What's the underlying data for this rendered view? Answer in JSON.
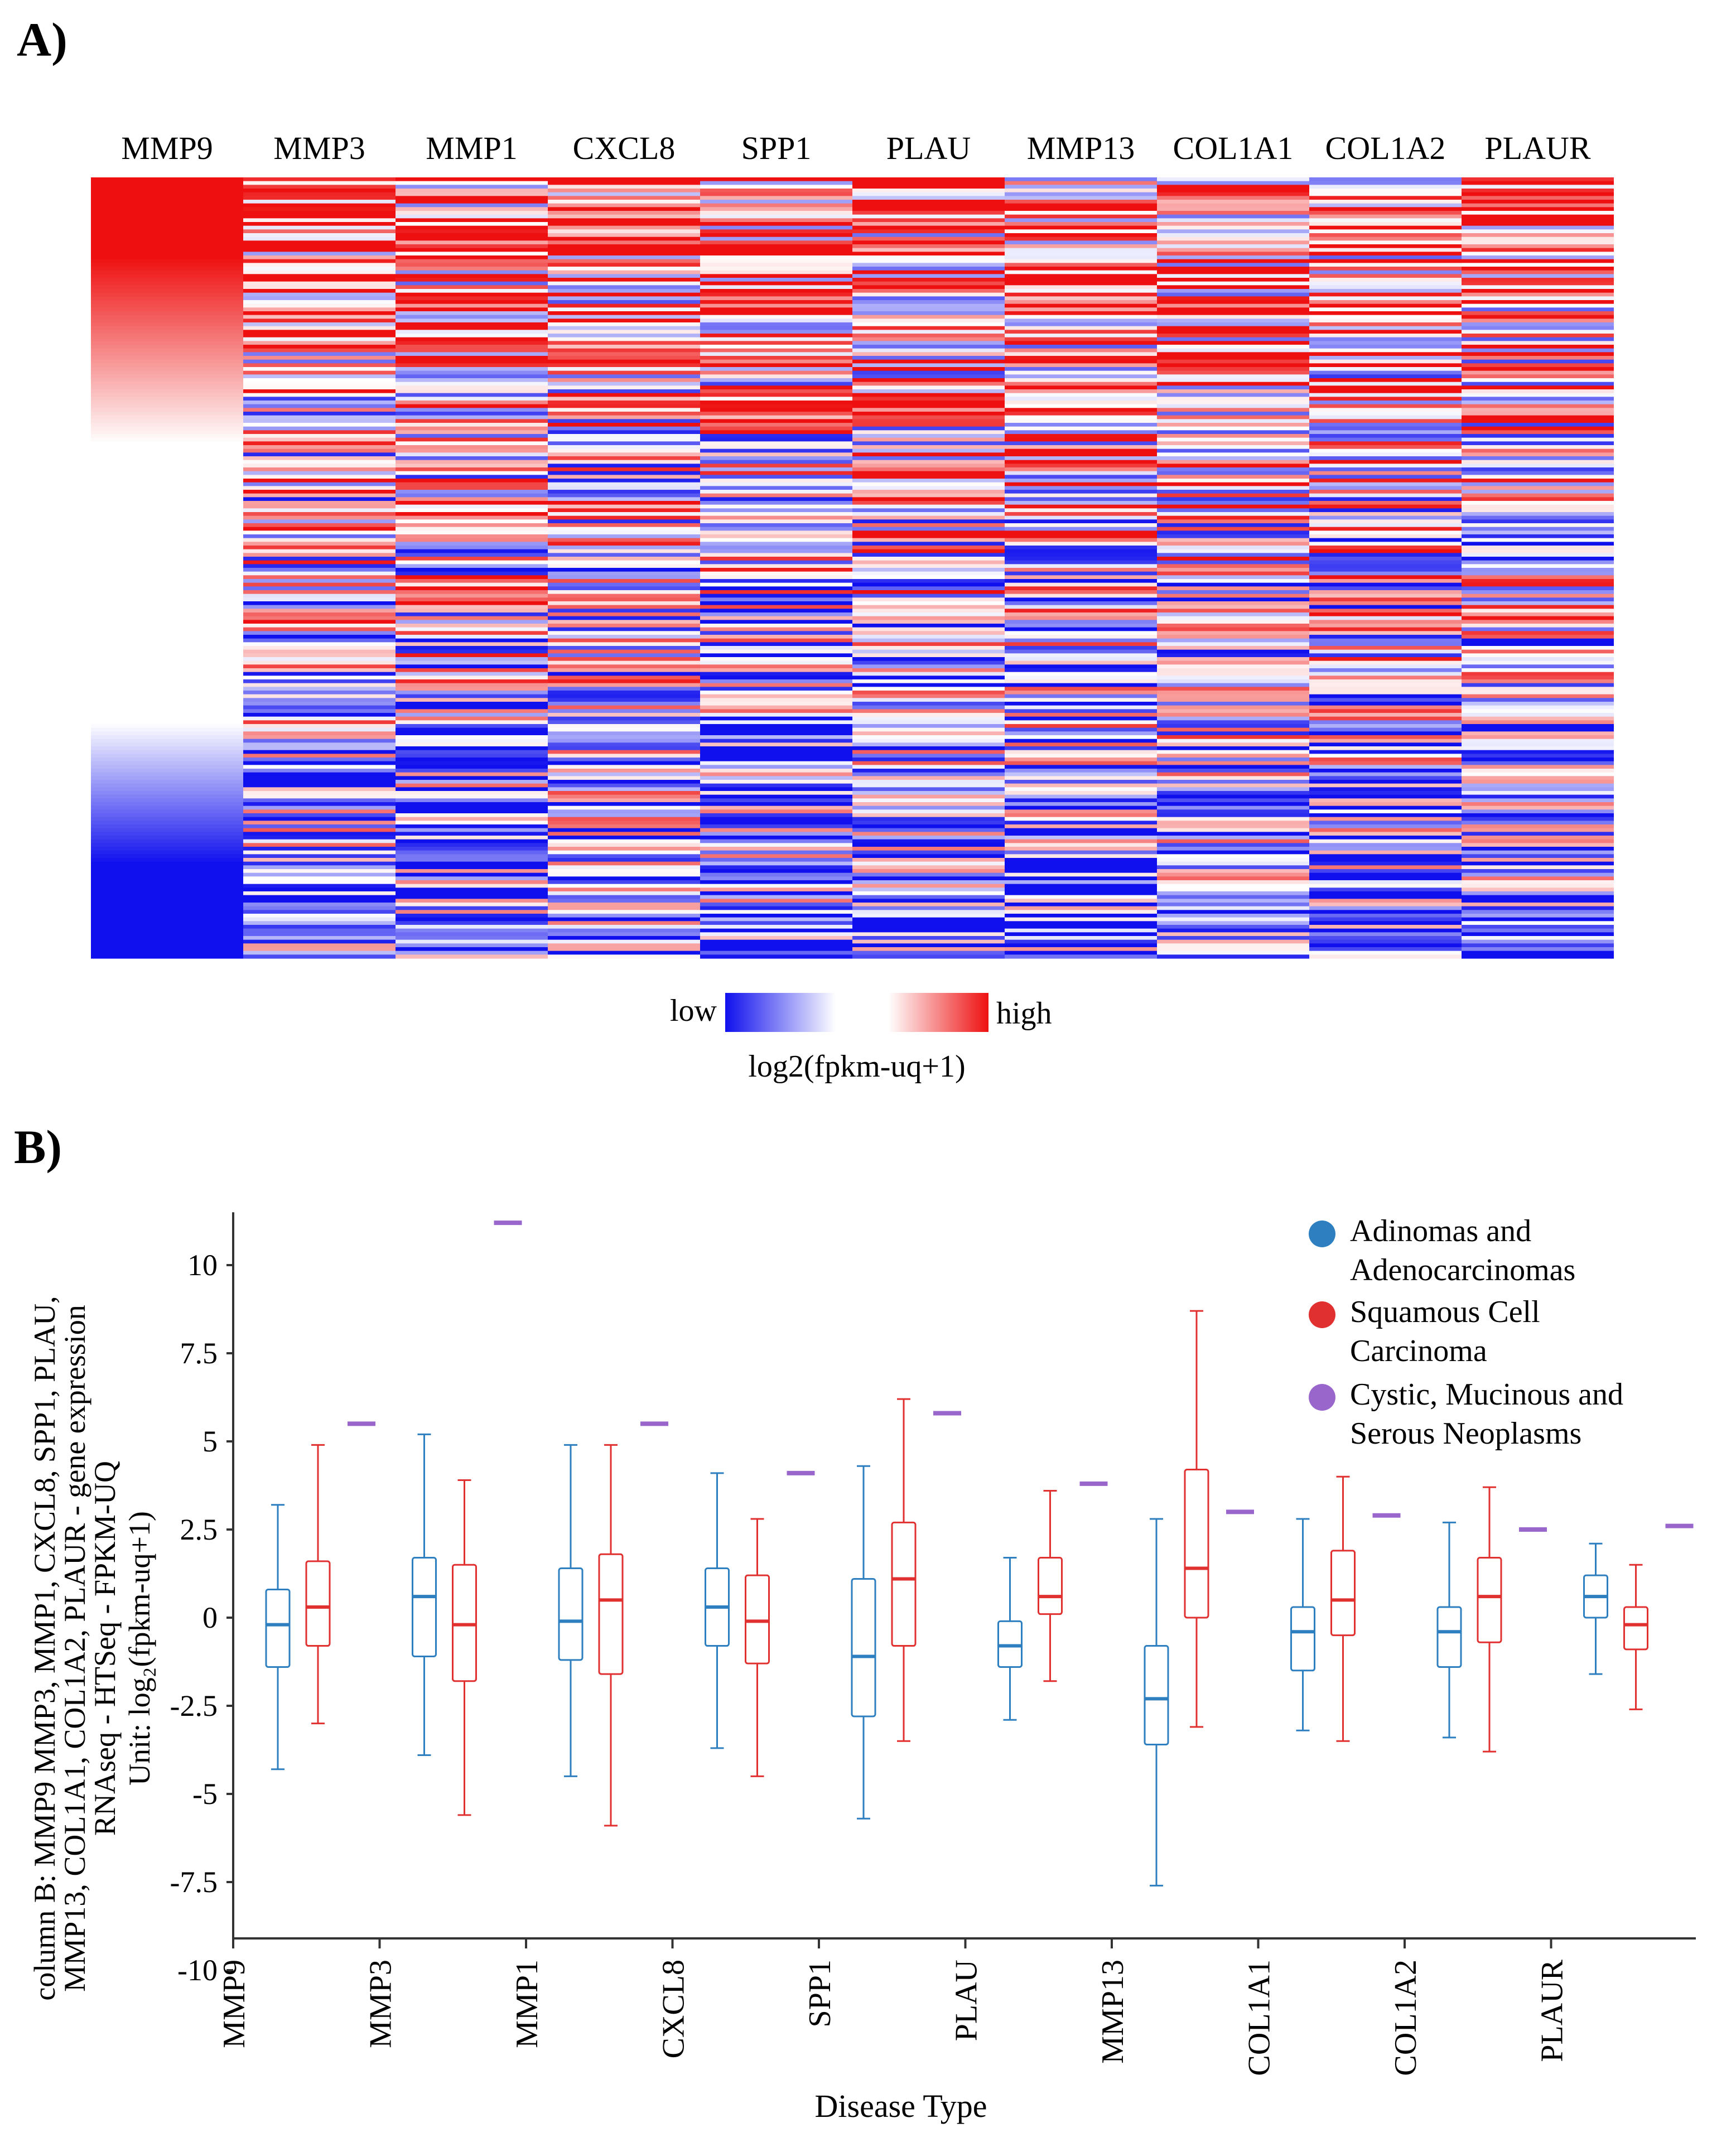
{
  "panels": {
    "a_label": "A)",
    "b_label": "B)"
  },
  "chart_data": [
    {
      "type": "heatmap",
      "columns": [
        "MMP9",
        "MMP3",
        "MMP1",
        "CXCL8",
        "SPP1",
        "PLAU",
        "MMP13",
        "COL1A1",
        "COL1A2",
        "PLAUR"
      ],
      "rows": 210,
      "sorted_by": "MMP9",
      "color_scale": {
        "low_color": "#1010ee",
        "mid_color": "#ffffff",
        "high_color": "#ee1010"
      },
      "legend": {
        "low_label": "low",
        "high_label": "high",
        "title": "log2(fpkm-uq+1)"
      }
    },
    {
      "type": "box",
      "ylabel_lines": [
        "column B: MMP9 MMP3, MMP1, CXCL8, SPP1, PLAU,",
        "MMP13, COL1A1, COL1A2, PLAUR - gene expression",
        "RNAseq - HTSeq - FPKM-UQ",
        "Unit: log₂(fpkm-uq+1)"
      ],
      "xlabel": "Disease Type",
      "ylim": [
        -10,
        11.5
      ],
      "yticks": [
        10,
        7.5,
        5,
        2.5,
        0,
        -2.5,
        -5,
        -7.5,
        -10
      ],
      "ytick_labels": [
        "10",
        "7.5",
        "5",
        "2.5",
        "0",
        "-2.5",
        "-5",
        "-7.5",
        "-10"
      ],
      "categories": [
        "MMP9",
        "MMP3",
        "MMP1",
        "CXCL8",
        "SPP1",
        "PLAU",
        "MMP13",
        "COL1A1",
        "COL1A2",
        "PLAUR"
      ],
      "series": [
        {
          "name": "Adinomas and Adenocarcinomas",
          "color": "#2e7fbf",
          "boxes": [
            {
              "whislo": -4.3,
              "q1": -1.4,
              "med": -0.2,
              "q3": 0.8,
              "whishi": 3.2
            },
            {
              "whislo": -3.9,
              "q1": -1.1,
              "med": 0.6,
              "q3": 1.7,
              "whishi": 5.2
            },
            {
              "whislo": -4.5,
              "q1": -1.2,
              "med": -0.1,
              "q3": 1.4,
              "whishi": 4.9
            },
            {
              "whislo": -3.7,
              "q1": -0.8,
              "med": 0.3,
              "q3": 1.4,
              "whishi": 4.1
            },
            {
              "whislo": -5.7,
              "q1": -2.8,
              "med": -1.1,
              "q3": 1.1,
              "whishi": 4.3
            },
            {
              "whislo": -2.9,
              "q1": -1.4,
              "med": -0.8,
              "q3": -0.1,
              "whishi": 1.7
            },
            {
              "whislo": -7.6,
              "q1": -3.6,
              "med": -2.3,
              "q3": -0.8,
              "whishi": 2.8
            },
            {
              "whislo": -3.2,
              "q1": -1.5,
              "med": -0.4,
              "q3": 0.3,
              "whishi": 2.8
            },
            {
              "whislo": -3.4,
              "q1": -1.4,
              "med": -0.4,
              "q3": 0.3,
              "whishi": 2.7
            },
            {
              "whislo": -1.6,
              "q1": 0.0,
              "med": 0.6,
              "q3": 1.2,
              "whishi": 2.1
            }
          ]
        },
        {
          "name": "Squamous Cell Carcinoma",
          "color": "#e03030",
          "boxes": [
            {
              "whislo": -3.0,
              "q1": -0.8,
              "med": 0.3,
              "q3": 1.6,
              "whishi": 4.9
            },
            {
              "whislo": -5.6,
              "q1": -1.8,
              "med": -0.2,
              "q3": 1.5,
              "whishi": 3.9
            },
            {
              "whislo": -5.9,
              "q1": -1.6,
              "med": 0.5,
              "q3": 1.8,
              "whishi": 4.9
            },
            {
              "whislo": -4.5,
              "q1": -1.3,
              "med": -0.1,
              "q3": 1.2,
              "whishi": 2.8
            },
            {
              "whislo": -3.5,
              "q1": -0.8,
              "med": 1.1,
              "q3": 2.7,
              "whishi": 6.2
            },
            {
              "whislo": -1.8,
              "q1": 0.1,
              "med": 0.6,
              "q3": 1.7,
              "whishi": 3.6
            },
            {
              "whislo": -3.1,
              "q1": 0.0,
              "med": 1.4,
              "q3": 4.2,
              "whishi": 8.7
            },
            {
              "whislo": -3.5,
              "q1": -0.5,
              "med": 0.5,
              "q3": 1.9,
              "whishi": 4.0
            },
            {
              "whislo": -3.8,
              "q1": -0.7,
              "med": 0.6,
              "q3": 1.7,
              "whishi": 3.7
            },
            {
              "whislo": -2.6,
              "q1": -0.9,
              "med": -0.2,
              "q3": 0.3,
              "whishi": 1.5
            }
          ]
        },
        {
          "name": "Cystic, Mucinous and Serous Neoplasms",
          "color": "#9966cc",
          "values": [
            5.5,
            11.2,
            5.5,
            4.1,
            5.8,
            3.8,
            3.0,
            2.9,
            2.5,
            2.6
          ]
        }
      ],
      "legend_entries": [
        {
          "line1": "Adinomas and",
          "line2": "Adenocarcinomas",
          "color": "#2e7fbf"
        },
        {
          "line1": "Squamous Cell",
          "line2": "Carcinoma",
          "color": "#e03030"
        },
        {
          "line1": "Cystic, Mucinous and",
          "line2": "Serous Neoplasms",
          "color": "#9966cc"
        }
      ]
    }
  ]
}
